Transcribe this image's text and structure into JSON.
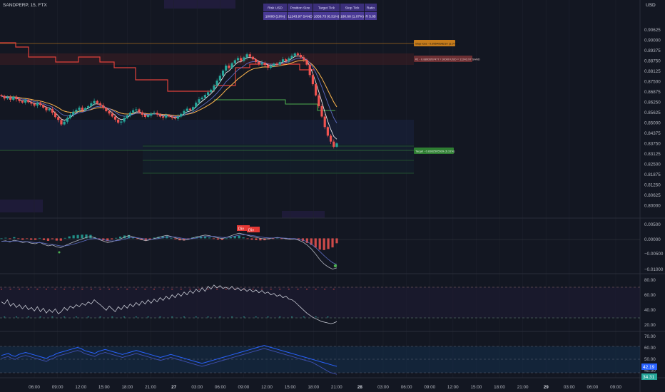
{
  "header": {
    "symbol": "SANDPERP, 15, FTX",
    "currency": "USD"
  },
  "info_table": {
    "headers": [
      "Risk USD",
      "Position Size",
      "Target Tick",
      "Stop Tick",
      "Ratio"
    ],
    "values": [
      "10000 (10%)",
      "11243.97 SAND",
      "1056.73 (6.31%)",
      "180.68 (1.07%)",
      "R 5.85"
    ]
  },
  "markers": {
    "stop": "Stop loss - 0.8954898210 (1.07%)",
    "entry": "#1 - 0.8893957477 / 10000 USD = 11243.97 SAND",
    "target": "Target - 0.8382505539 (6.31%)",
    "div1": "Div",
    "div2": "Div"
  },
  "colors": {
    "background": "#131722",
    "up": "#26a69a",
    "down": "#ef5350",
    "stop": "#c67c1c",
    "entry_band": "#6b2f33",
    "target": "#2e7d32",
    "rsi_line": "#c9ccd6",
    "blue_line": "#2962ff",
    "accent_purple": "#3b2f7a"
  },
  "price_axis": {
    "ticks": [
      "0.90625",
      "0.90000",
      "0.89375",
      "0.88750",
      "0.88125",
      "0.87500",
      "0.86875",
      "0.86250",
      "0.85625",
      "0.85000",
      "0.84375",
      "0.83750",
      "0.83125",
      "0.82500",
      "0.81875",
      "0.81250",
      "0.80625",
      "0.80000"
    ]
  },
  "osc1_axis": {
    "ticks": [
      "0.00500",
      "0.00000",
      "−0.00500",
      "−0.01000"
    ]
  },
  "rsi_axis": {
    "ticks": [
      "80.00",
      "60.00",
      "40.00",
      "20.00"
    ]
  },
  "osc3_axis": {
    "ticks": [
      "70.00",
      "60.00",
      "50.00",
      "40.00"
    ]
  },
  "last_values": {
    "blue": "42.19",
    "green": "34.31"
  },
  "time_axis": {
    "labels": [
      "06:00",
      "09:00",
      "12:00",
      "15:00",
      "18:00",
      "21:00",
      "27",
      "03:00",
      "06:00",
      "09:00",
      "12:00",
      "15:00",
      "18:00",
      "21:00",
      "28",
      "03:00",
      "06:00",
      "09:00",
      "12:00",
      "15:00",
      "18:00",
      "21:00",
      "29",
      "03:00",
      "06:00",
      "09:00"
    ]
  },
  "chart_data": {
    "type": "candlestick",
    "title": "SANDPERP, 15, FTX",
    "ylim": [
      0.7995,
      0.9095
    ],
    "series_close": [
      0.8645,
      0.8632,
      0.8638,
      0.8625,
      0.8642,
      0.8628,
      0.8617,
      0.8609,
      0.8623,
      0.8611,
      0.8603,
      0.8592,
      0.8606,
      0.8596,
      0.8581,
      0.8566,
      0.8573,
      0.8552,
      0.8528,
      0.8512,
      0.8487,
      0.8502,
      0.8523,
      0.8541,
      0.8558,
      0.8569,
      0.8581,
      0.8566,
      0.8578,
      0.8589,
      0.8605,
      0.8618,
      0.8605,
      0.8594,
      0.8579,
      0.8561,
      0.8548,
      0.8531,
      0.8514,
      0.8497,
      0.8503,
      0.8522,
      0.8538,
      0.8553,
      0.8566,
      0.8571,
      0.8555,
      0.8541,
      0.8529,
      0.8536,
      0.8548,
      0.8552,
      0.8542,
      0.8531,
      0.8525,
      0.8538,
      0.8531,
      0.8524,
      0.8519,
      0.8531,
      0.8546,
      0.8562,
      0.8575,
      0.8568,
      0.8584,
      0.8609,
      0.8628,
      0.8637,
      0.8652,
      0.8667,
      0.8681,
      0.8704,
      0.8732,
      0.8759,
      0.8788,
      0.8816,
      0.8802,
      0.8829,
      0.8846,
      0.8858,
      0.8843,
      0.8862,
      0.8879,
      0.8865,
      0.8851,
      0.8836,
      0.8822,
      0.8832,
      0.8819,
      0.8804,
      0.8813,
      0.8827,
      0.8821,
      0.8836,
      0.8851,
      0.8842,
      0.8856,
      0.8871,
      0.8884,
      0.8876,
      0.8862,
      0.8848,
      0.8821,
      0.8763,
      0.8712,
      0.8649,
      0.8589,
      0.8531,
      0.8472,
      0.8424,
      0.8391,
      0.8362,
      0.8381
    ],
    "stop_price": 0.895489821,
    "entry_price": 0.8893957477,
    "target_price": 0.8382505539,
    "rsi": [
      52,
      49,
      55,
      46,
      50,
      44,
      48,
      42,
      47,
      41,
      44,
      39,
      45,
      38,
      43,
      36,
      41,
      37,
      42,
      35,
      38,
      44,
      40,
      46,
      43,
      48,
      45,
      50,
      47,
      52,
      49,
      55,
      51,
      48,
      44,
      40,
      46,
      42,
      38,
      45,
      41,
      47,
      43,
      49,
      45,
      51,
      47,
      53,
      49,
      55,
      50,
      56,
      52,
      58,
      54,
      60,
      56,
      62,
      58,
      64,
      60,
      66,
      62,
      68,
      64,
      70,
      66,
      72,
      67,
      74,
      70,
      76,
      72,
      75,
      71,
      73,
      70,
      74,
      69,
      72,
      68,
      71,
      67,
      70,
      66,
      69,
      65,
      68,
      64,
      66,
      62,
      64,
      60,
      62,
      58,
      60,
      56,
      55,
      52,
      48,
      44,
      40,
      36,
      33,
      30,
      28,
      26,
      24,
      23,
      22,
      21,
      22,
      24
    ],
    "osc_line": [
      -0.001,
      -0.0008,
      -0.0012,
      -0.0006,
      -0.0009,
      -0.0014,
      -0.0011,
      -0.0016,
      -0.0018,
      -0.0013,
      -0.002,
      -0.0025,
      -0.0022,
      -0.0028,
      -0.0031,
      -0.0024,
      -0.0018,
      -0.0012,
      -0.0007,
      -0.0002,
      0.0003,
      0.0006,
      0.0002,
      -0.0004,
      -0.0009,
      -0.0014,
      -0.0011,
      -0.0007,
      -0.0002,
      0.0004,
      0.0009,
      0.0005,
      0.0001,
      -0.0004,
      -0.0008,
      -0.0005,
      -0.0001,
      0.0003,
      0.0007,
      0.001,
      0.0006,
      0.0002,
      -0.0003,
      -0.0006,
      -0.0004,
      0.0001,
      0.0005,
      0.0008,
      0.0011,
      0.0009,
      0.0005,
      0.0002,
      -0.0001,
      0.0003,
      0.0008,
      0.0013,
      0.0017,
      0.0014,
      0.001,
      0.0006,
      0.0003,
      0.0,
      -0.0002,
      -0.0001,
      0.0001,
      0.0003,
      0.0001,
      -0.0001,
      -0.0003,
      -0.0002,
      -0.0006,
      -0.0012,
      -0.0022,
      -0.0035,
      -0.0052,
      -0.007,
      -0.0085,
      -0.0095,
      -0.0102,
      -0.0098
    ],
    "ylim_osc": [
      -0.011,
      0.006
    ],
    "blue_line": [
      53,
      54,
      55,
      53,
      52,
      54,
      55,
      56,
      55,
      54,
      53,
      52,
      51,
      50,
      52,
      53,
      55,
      56,
      57,
      58,
      59,
      60,
      61,
      60,
      58,
      57,
      56,
      55,
      57,
      58,
      59,
      58,
      57,
      56,
      55,
      54,
      55,
      56,
      57,
      58,
      57,
      56,
      55,
      54,
      53,
      52,
      51,
      52,
      53,
      54,
      53,
      52,
      51,
      50,
      49,
      48,
      47,
      46,
      45,
      46,
      47,
      48,
      49,
      50,
      51,
      52,
      53,
      54,
      55,
      56,
      57,
      58,
      59,
      60,
      61,
      62,
      63,
      62,
      61,
      60,
      59,
      58,
      57,
      56,
      55,
      54,
      53,
      52,
      51,
      50,
      49,
      48,
      47,
      46,
      45,
      44,
      43,
      42
    ],
    "green_line": [
      50,
      51,
      52,
      50,
      49,
      51,
      52,
      53,
      52,
      51,
      50,
      49,
      48,
      47,
      49,
      50,
      52,
      53,
      54,
      55,
      56,
      57,
      58,
      57,
      55,
      54,
      53,
      52,
      54,
      55,
      56,
      55,
      54,
      53,
      52,
      51,
      52,
      53,
      54,
      55,
      54,
      53,
      52,
      51,
      50,
      49,
      48,
      49,
      50,
      51,
      50,
      49,
      48,
      47,
      46,
      45,
      44,
      43,
      42,
      43,
      44,
      45,
      46,
      47,
      48,
      49,
      50,
      51,
      52,
      53,
      54,
      55,
      56,
      57,
      58,
      59,
      60,
      59,
      58,
      57,
      56,
      55,
      54,
      53,
      52,
      51,
      50,
      49,
      48,
      47,
      46,
      44,
      42,
      40,
      38,
      36,
      35,
      34
    ]
  }
}
